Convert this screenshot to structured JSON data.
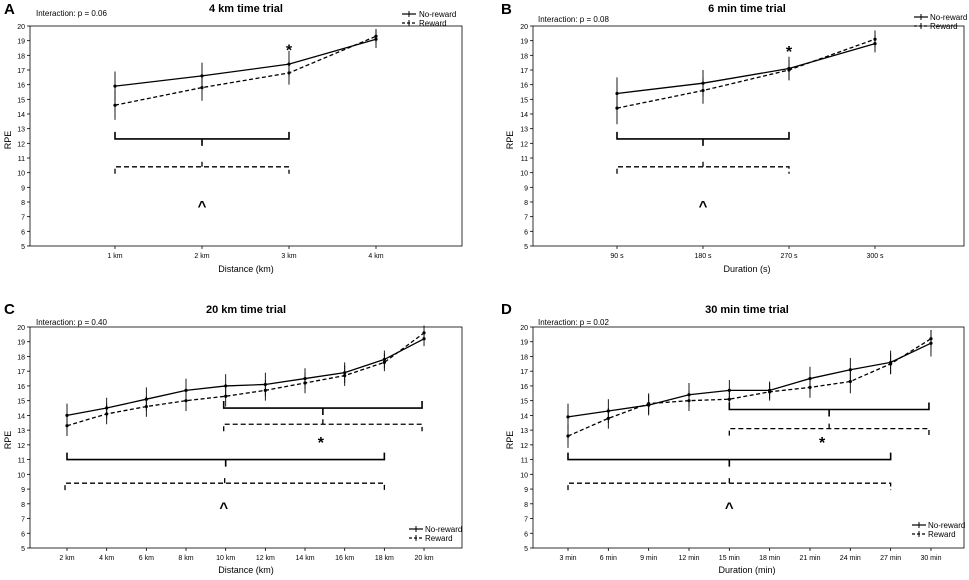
{
  "chart_data": [
    {
      "type": "line",
      "panel_label": "A",
      "title": "4 km time trial",
      "interaction": "Interaction: p = 0.06",
      "xlabel": "Distance (km)",
      "ylabel": "RPE",
      "ylim": [
        5,
        20
      ],
      "yticks": [
        "5",
        "6",
        "7",
        "8",
        "9",
        "10",
        "11",
        "12",
        "13",
        "14",
        "15",
        "16",
        "17",
        "18",
        "19",
        "20"
      ],
      "categories": [
        "1 km",
        "2 km",
        "3 km",
        "4 km"
      ],
      "legend_position": "top-right",
      "series": [
        {
          "name": "No-reward",
          "style": "solid",
          "values": [
            15.9,
            16.6,
            17.4,
            19.1
          ],
          "ci": [
            1.0,
            0.9,
            0.9,
            0.6
          ]
        },
        {
          "name": "Reward",
          "style": "dashed",
          "values": [
            14.6,
            15.8,
            16.8,
            19.3
          ],
          "ci": [
            1.0,
            0.9,
            0.8,
            0.5
          ]
        }
      ],
      "annotations": [
        {
          "symbol": "*",
          "at_category": 2,
          "y": 18.0
        },
        {
          "symbol": "^",
          "x_center": 1.0,
          "y": 7.4
        }
      ],
      "brackets": [
        {
          "style": "solid",
          "from": 0,
          "to": 2,
          "y": 12.3,
          "direction": "down"
        },
        {
          "style": "dashed",
          "from": 0,
          "to": 2,
          "y": 10.4,
          "direction": "up"
        }
      ]
    },
    {
      "type": "line",
      "panel_label": "B",
      "title": "6 min time trial",
      "interaction": "Interaction: p = 0.08",
      "xlabel": "Duration (s)",
      "ylabel": "RPE",
      "ylim": [
        5,
        20
      ],
      "yticks": [
        "5",
        "6",
        "7",
        "8",
        "9",
        "10",
        "11",
        "12",
        "13",
        "14",
        "15",
        "16",
        "17",
        "18",
        "19",
        "20"
      ],
      "categories": [
        "90 s",
        "180 s",
        "270 s",
        "300 s"
      ],
      "legend_position": "top-right",
      "series": [
        {
          "name": "No-reward",
          "style": "solid",
          "values": [
            15.4,
            16.1,
            17.1,
            18.8
          ],
          "ci": [
            1.1,
            0.9,
            0.8,
            0.6
          ]
        },
        {
          "name": "Reward",
          "style": "dashed",
          "values": [
            14.4,
            15.6,
            17.0,
            19.1
          ],
          "ci": [
            1.1,
            0.9,
            0.7,
            0.6
          ]
        }
      ],
      "annotations": [
        {
          "symbol": "*",
          "at_category": 2,
          "y": 17.9
        },
        {
          "symbol": "^",
          "x_center": 1.0,
          "y": 7.4
        }
      ],
      "brackets": [
        {
          "style": "solid",
          "from": 0,
          "to": 2,
          "y": 12.3,
          "direction": "down"
        },
        {
          "style": "dashed",
          "from": 0,
          "to": 2,
          "y": 10.4,
          "direction": "up"
        }
      ]
    },
    {
      "type": "line",
      "panel_label": "C",
      "title": "20 km time trial",
      "interaction": "Interaction: p = 0.40",
      "xlabel": "Distance (km)",
      "ylabel": "RPE",
      "ylim": [
        5,
        20
      ],
      "yticks": [
        "5",
        "6",
        "7",
        "8",
        "9",
        "10",
        "11",
        "12",
        "13",
        "14",
        "15",
        "16",
        "17",
        "18",
        "19",
        "20"
      ],
      "categories": [
        "2 km",
        "4 km",
        "6 km",
        "8 km",
        "10 km",
        "12 km",
        "14 km",
        "16 km",
        "18 km",
        "20 km"
      ],
      "legend_position": "bottom-right",
      "series": [
        {
          "name": "No-reward",
          "style": "solid",
          "values": [
            14.0,
            14.5,
            15.1,
            15.7,
            16.0,
            16.1,
            16.5,
            16.9,
            17.8,
            19.2
          ],
          "ci": [
            0.8,
            0.7,
            0.8,
            0.8,
            0.8,
            0.8,
            0.7,
            0.7,
            0.6,
            0.5
          ]
        },
        {
          "name": "Reward",
          "style": "dashed",
          "values": [
            13.3,
            14.1,
            14.6,
            15.0,
            15.3,
            15.7,
            16.2,
            16.7,
            17.6,
            19.6
          ],
          "ci": [
            0.7,
            0.7,
            0.7,
            0.7,
            0.7,
            0.7,
            0.7,
            0.7,
            0.6,
            0.5
          ]
        }
      ],
      "annotations": [
        {
          "symbol": "*",
          "x_center": 6.4,
          "y": 11.8
        },
        {
          "symbol": "^",
          "x_center": 3.95,
          "y": 7.4
        }
      ],
      "brackets": [
        {
          "style": "solid",
          "from": 3.95,
          "to": 8.95,
          "y": 14.5,
          "direction": "down"
        },
        {
          "style": "dashed",
          "from": 3.95,
          "to": 8.95,
          "y": 13.4,
          "direction": "up"
        },
        {
          "style": "solid",
          "from": 0,
          "to": 8.0,
          "y": 11.0,
          "direction": "down"
        },
        {
          "style": "dashed",
          "from": -0.05,
          "to": 8.0,
          "y": 9.4,
          "direction": "up"
        }
      ]
    },
    {
      "type": "line",
      "panel_label": "D",
      "title": "30 min time trial",
      "interaction": "Interaction: p = 0.02",
      "xlabel": "Duration (min)",
      "ylabel": "RPE",
      "ylim": [
        5,
        20
      ],
      "yticks": [
        "5",
        "6",
        "7",
        "8",
        "9",
        "10",
        "11",
        "12",
        "13",
        "14",
        "15",
        "16",
        "17",
        "18",
        "19",
        "20"
      ],
      "categories": [
        "3 min",
        "6 min",
        "9 min",
        "12 min",
        "15 min",
        "18 min",
        "21 min",
        "24 min",
        "27 min",
        "30 min"
      ],
      "legend_position": "bottom-right",
      "series": [
        {
          "name": "No-reward",
          "style": "solid",
          "values": [
            13.9,
            14.3,
            14.7,
            15.4,
            15.7,
            15.7,
            16.5,
            17.1,
            17.6,
            18.9
          ],
          "ci": [
            0.9,
            0.8,
            0.7,
            0.8,
            0.7,
            0.6,
            0.8,
            0.8,
            0.8,
            0.9
          ]
        },
        {
          "name": "Reward",
          "style": "dashed",
          "values": [
            12.6,
            13.8,
            14.8,
            15.0,
            15.1,
            15.6,
            15.9,
            16.3,
            17.5,
            19.2
          ],
          "ci": [
            0.8,
            0.7,
            0.7,
            0.7,
            0.7,
            0.6,
            0.7,
            0.8,
            0.7,
            0.6
          ]
        }
      ],
      "annotations": [
        {
          "symbol": "*",
          "x_center": 6.3,
          "y": 11.8
        },
        {
          "symbol": "^",
          "x_center": 4.0,
          "y": 7.4
        }
      ],
      "brackets": [
        {
          "style": "solid",
          "from": 4.0,
          "to": 8.95,
          "y": 14.4,
          "direction": "down"
        },
        {
          "style": "dashed",
          "from": 4.0,
          "to": 8.95,
          "y": 13.1,
          "direction": "up"
        },
        {
          "style": "solid",
          "from": 0,
          "to": 8.0,
          "y": 11.0,
          "direction": "down"
        },
        {
          "style": "dashed",
          "from": 0,
          "to": 8.0,
          "y": 9.4,
          "direction": "up"
        }
      ]
    }
  ]
}
